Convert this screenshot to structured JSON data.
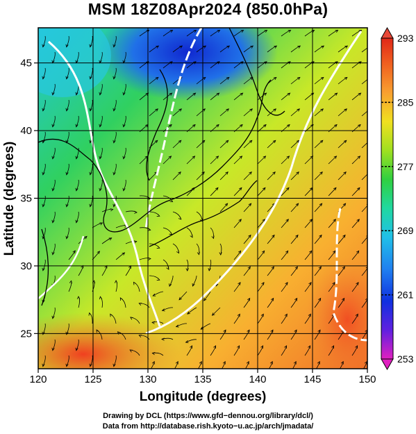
{
  "title": "MSM 18Z08Apr2024 (850.0hPa)",
  "map": {
    "xlabel": "Longitude (degrees)",
    "ylabel": "Latitude  (degrees)",
    "lon_range": [
      120,
      150
    ],
    "lat_range": [
      22.4,
      47.6
    ],
    "lon_ticks": [
      "120",
      "125",
      "130",
      "135",
      "140",
      "145",
      "150"
    ],
    "lat_ticks": [
      "25",
      "30",
      "35",
      "40",
      "45"
    ],
    "grid": true
  },
  "colorbar": {
    "ticks": [
      "293",
      "285",
      "277",
      "269",
      "261",
      "253"
    ],
    "range": [
      253,
      293
    ],
    "colors": [
      "#e020c0",
      "#6020e0",
      "#1030e0",
      "#2080f0",
      "#20c0e8",
      "#20d8a0",
      "#20d040",
      "#60d020",
      "#b0e020",
      "#e8f020",
      "#f8c830",
      "#f89830",
      "#f06020",
      "#e02818"
    ]
  },
  "credits": {
    "line1": "Drawing by DCL (https://www.gfd−dennou.org/library/dcl/)",
    "line2": "Data from http://database.rish.kyoto−u.ac.jp/arch/jmadata/"
  }
}
